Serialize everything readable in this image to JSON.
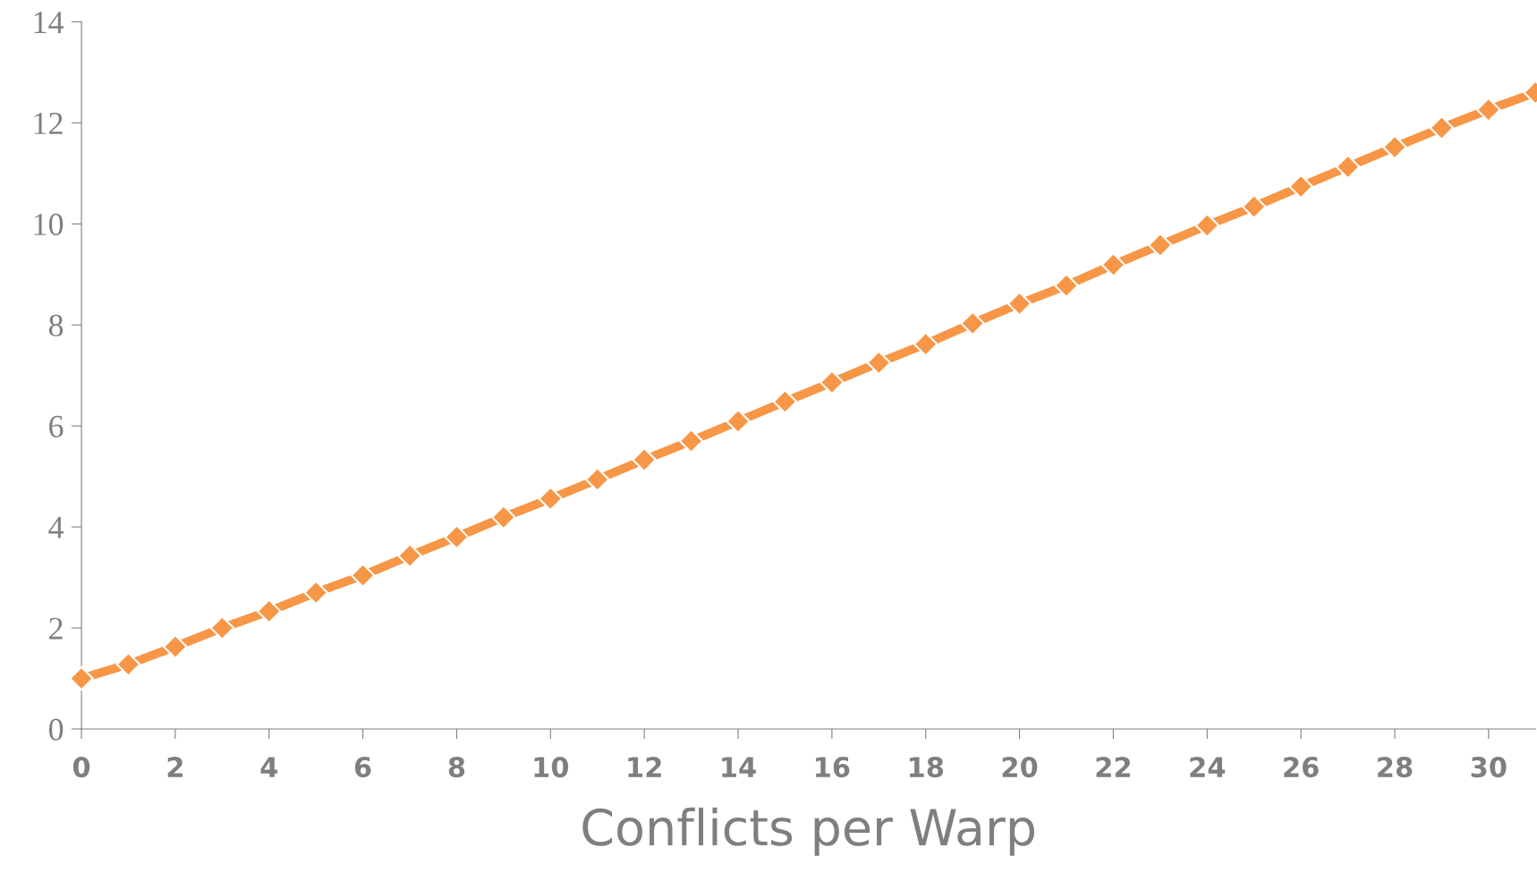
{
  "chart_data": {
    "type": "line",
    "xlabel": "Conflicts per Warp",
    "x": [
      0,
      1,
      2,
      3,
      4,
      5,
      6,
      7,
      8,
      9,
      10,
      11,
      12,
      13,
      14,
      15,
      16,
      17,
      18,
      19,
      20,
      21,
      22,
      23,
      24,
      25,
      26,
      27,
      28,
      29,
      30,
      31
    ],
    "series": [
      {
        "color": "#f79646",
        "values": [
          1.0,
          1.28,
          1.63,
          2.0,
          2.33,
          2.7,
          3.04,
          3.43,
          3.8,
          4.19,
          4.56,
          4.94,
          5.33,
          5.7,
          6.09,
          6.48,
          6.86,
          7.25,
          7.62,
          8.03,
          8.42,
          8.78,
          9.19,
          9.58,
          9.97,
          10.34,
          10.74,
          11.13,
          11.52,
          11.9,
          12.26,
          12.6
        ]
      }
    ],
    "xlim": [
      0,
      31
    ],
    "xticks": [
      0,
      2,
      4,
      6,
      8,
      10,
      12,
      14,
      16,
      18,
      20,
      22,
      24,
      26,
      28,
      30
    ],
    "ylim": [
      0,
      14
    ],
    "yticks": [
      0,
      2,
      4,
      6,
      8,
      10,
      12,
      14
    ],
    "marker": "diamond",
    "line_style": "solid",
    "grid": false
  }
}
